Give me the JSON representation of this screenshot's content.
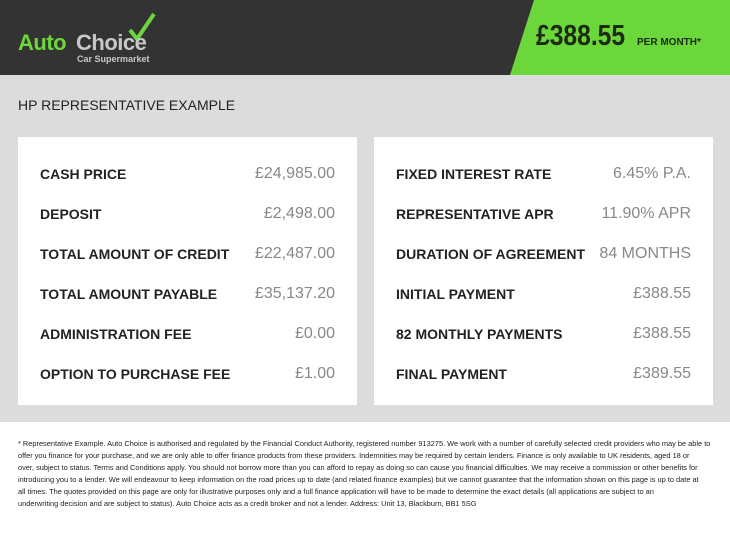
{
  "brand": {
    "name_part1": "Auto",
    "name_part2": "Choice",
    "tagline": "Car Supermarket",
    "colors": {
      "green": "#6bd73a",
      "dark": "#333333"
    }
  },
  "header": {
    "price": "£388.55",
    "per_month": "PER MONTH*"
  },
  "title": "HP REPRESENTATIVE EXAMPLE",
  "left": [
    {
      "label": "CASH PRICE",
      "value": "£24,985.00"
    },
    {
      "label": "DEPOSIT",
      "value": "£2,498.00"
    },
    {
      "label": "TOTAL AMOUNT OF CREDIT",
      "value": "£22,487.00"
    },
    {
      "label": "TOTAL AMOUNT PAYABLE",
      "value": "£35,137.20"
    },
    {
      "label": "ADMINISTRATION FEE",
      "value": "£0.00"
    },
    {
      "label": "OPTION TO PURCHASE FEE",
      "value": "£1.00"
    }
  ],
  "right": [
    {
      "label": "FIXED INTEREST RATE",
      "value": "6.45% P.A."
    },
    {
      "label": "REPRESENTATIVE APR",
      "value": "11.90% APR"
    },
    {
      "label": "DURATION OF AGREEMENT",
      "value": "84 MONTHS"
    },
    {
      "label": "INITIAL PAYMENT",
      "value": "£388.55"
    },
    {
      "label": "82 MONTHLY PAYMENTS",
      "value": "£388.55"
    },
    {
      "label": "FINAL PAYMENT",
      "value": "£389.55"
    }
  ],
  "disclaimer": [
    "* Representative Example. Auto Choice is authorised and regulated by the Financial Conduct Authority, registered number 913275. We work with a number of carefully selected credit providers who may be able to",
    "offer you finance for your purchase, and we are only able to offer finance products from these providers. Indemnities may be required by certain lenders. Finance is only available to UK residents, aged 18 or",
    "over, subject to status. Terms and Conditions apply. You should not borrow more than you can afford to repay as doing so can cause you financial difficulties. We may receive a commission or other benefits for",
    "introducing you to a lender. We will endeavour to keep information on the road prices up to date (and related finance examples) but we cannot guarantee that the information shown on this page is up to date at",
    "all times. The quotes provided on this page are only for illustrative purposes only and a full finance application will have to be made to determine the exact details (all applications are subject to an",
    "underwriting decision and are subject to status). Auto Choice acts as a credit broker and not a lender. Address: Unit 13, Blackburn, BB1 5SG"
  ]
}
